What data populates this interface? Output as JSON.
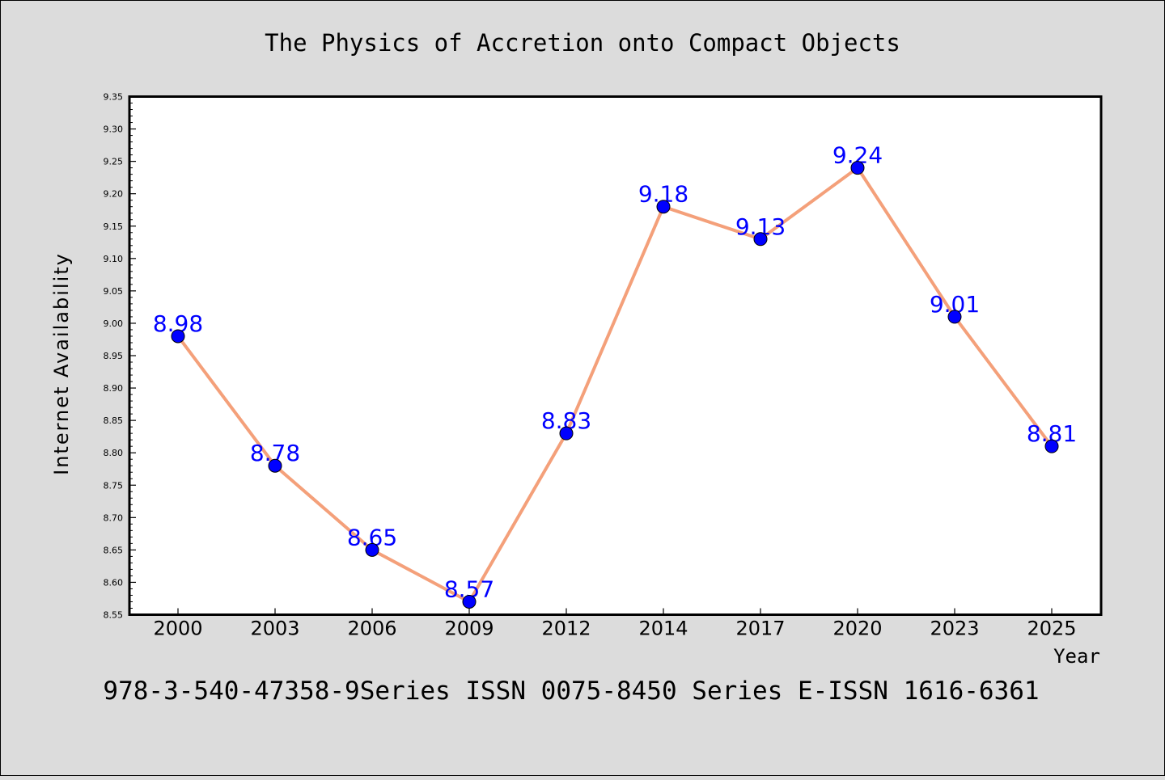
{
  "chart_data": {
    "type": "line",
    "title": "The Physics of Accretion onto Compact Objects",
    "xlabel": "Year",
    "ylabel": "Internet Availability",
    "categories": [
      "2000",
      "2003",
      "2006",
      "2009",
      "2012",
      "2014",
      "2017",
      "2020",
      "2023",
      "2025"
    ],
    "values": [
      8.98,
      8.78,
      8.65,
      8.57,
      8.83,
      9.18,
      9.13,
      9.24,
      9.01,
      8.81
    ],
    "data_labels": [
      "8.98",
      "8.78",
      "8.65",
      "8.57",
      "8.83",
      "9.18",
      "9.13",
      "9.24",
      "9.01",
      "8.81"
    ],
    "ylim": [
      8.55,
      9.35
    ],
    "y_ticks": [
      "8.55",
      "8.60",
      "8.65",
      "8.70",
      "8.75",
      "8.80",
      "8.85",
      "8.90",
      "8.95",
      "9.00",
      "9.05",
      "9.10",
      "9.15",
      "9.20",
      "9.25",
      "9.30",
      "9.35"
    ],
    "grid": false,
    "line_color": "#f4a07a",
    "marker_color": "#0000ff",
    "label_color": "#0000ff"
  },
  "footer": {
    "text": "978-3-540-47358-9Series ISSN 0075-8450 Series E-ISSN 1616-6361"
  }
}
